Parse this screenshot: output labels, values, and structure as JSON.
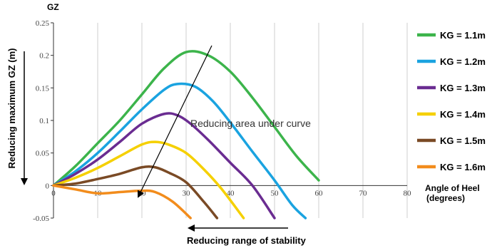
{
  "chart_data": {
    "type": "line",
    "ylabel": "GZ",
    "xlabel": [
      "Angle of Heel",
      "(degrees)"
    ],
    "xlim": [
      0,
      80
    ],
    "ylim": [
      -0.05,
      0.25
    ],
    "x_ticks": [
      "0",
      "10",
      "20",
      "30",
      "40",
      "50",
      "60",
      "70",
      "80"
    ],
    "y_ticks": [
      "-0.05",
      "0",
      "0.05",
      "0.1",
      "0.15",
      "0.2",
      "0.25"
    ],
    "grid": "vertical",
    "legend_position": "right",
    "series": [
      {
        "name": "KG = 1.1m",
        "color": "#3cb44b",
        "points": [
          [
            0,
            0
          ],
          [
            5,
            0.03
          ],
          [
            10,
            0.065
          ],
          [
            15,
            0.1
          ],
          [
            20,
            0.14
          ],
          [
            25,
            0.18
          ],
          [
            30,
            0.205
          ],
          [
            35,
            0.2
          ],
          [
            40,
            0.175
          ],
          [
            45,
            0.135
          ],
          [
            50,
            0.09
          ],
          [
            55,
            0.045
          ],
          [
            60,
            0.008
          ]
        ]
      },
      {
        "name": "KG = 1.2m",
        "color": "#1aa3e0",
        "points": [
          [
            0,
            0
          ],
          [
            5,
            0.022
          ],
          [
            10,
            0.05
          ],
          [
            15,
            0.083
          ],
          [
            20,
            0.117
          ],
          [
            25,
            0.147
          ],
          [
            28,
            0.156
          ],
          [
            32,
            0.152
          ],
          [
            36,
            0.13
          ],
          [
            40,
            0.097
          ],
          [
            45,
            0.052
          ],
          [
            50,
            0.008
          ],
          [
            54,
            -0.03
          ],
          [
            57,
            -0.05
          ]
        ]
      },
      {
        "name": "KG = 1.3m",
        "color": "#6a2c91",
        "points": [
          [
            0,
            0
          ],
          [
            5,
            0.018
          ],
          [
            10,
            0.04
          ],
          [
            15,
            0.067
          ],
          [
            20,
            0.095
          ],
          [
            25,
            0.11
          ],
          [
            28,
            0.108
          ],
          [
            31,
            0.095
          ],
          [
            35,
            0.07
          ],
          [
            40,
            0.035
          ],
          [
            45,
            0.0
          ],
          [
            50,
            -0.05
          ]
        ]
      },
      {
        "name": "KG = 1.4m",
        "color": "#f5d000",
        "points": [
          [
            0,
            0
          ],
          [
            5,
            0.012
          ],
          [
            10,
            0.027
          ],
          [
            15,
            0.045
          ],
          [
            20,
            0.063
          ],
          [
            23,
            0.067
          ],
          [
            26,
            0.063
          ],
          [
            30,
            0.05
          ],
          [
            34,
            0.025
          ],
          [
            38,
            -0.005
          ],
          [
            43,
            -0.05
          ]
        ]
      },
      {
        "name": "KG = 1.5m",
        "color": "#7a4a25",
        "points": [
          [
            0,
            0
          ],
          [
            5,
            0.003
          ],
          [
            10,
            0.01
          ],
          [
            15,
            0.018
          ],
          [
            20,
            0.028
          ],
          [
            23,
            0.028
          ],
          [
            26,
            0.02
          ],
          [
            30,
            0.005
          ],
          [
            34,
            -0.025
          ],
          [
            37,
            -0.05
          ]
        ]
      },
      {
        "name": "KG = 1.6m",
        "color": "#f28c1c",
        "points": [
          [
            0,
            0
          ],
          [
            5,
            -0.006
          ],
          [
            10,
            -0.012
          ],
          [
            15,
            -0.01
          ],
          [
            20,
            -0.008
          ],
          [
            23,
            -0.01
          ],
          [
            27,
            -0.025
          ],
          [
            31,
            -0.05
          ]
        ]
      }
    ],
    "annotations": {
      "left_arrow_label": "Reducing maximum GZ (m)",
      "area_label": "Reducing area under curve",
      "range_label": "Reducing range of stability"
    }
  }
}
